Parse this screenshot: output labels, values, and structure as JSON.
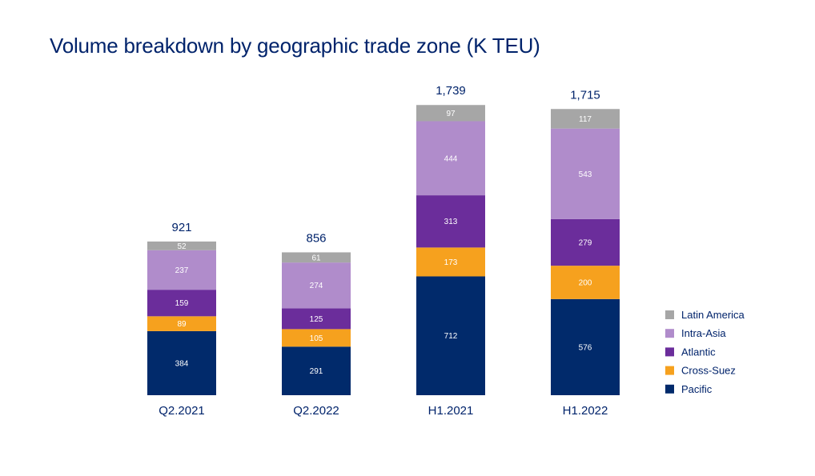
{
  "chart_data": {
    "type": "bar",
    "stacked": true,
    "title": "Volume breakdown by geographic trade zone (K TEU)",
    "categories": [
      "Q2.2021",
      "Q2.2022",
      "H1.2021",
      "H1.2022"
    ],
    "totals": [
      "921",
      "856",
      "1,739",
      "1,715"
    ],
    "series": [
      {
        "name": "Pacific",
        "color": "#012a6b",
        "values": [
          384,
          291,
          712,
          576
        ]
      },
      {
        "name": "Cross-Suez",
        "color": "#f6a11e",
        "values": [
          89,
          105,
          173,
          200
        ]
      },
      {
        "name": "Atlantic",
        "color": "#6b2d9b",
        "values": [
          159,
          125,
          313,
          279
        ]
      },
      {
        "name": "Intra-Asia",
        "color": "#b08ccb",
        "values": [
          237,
          274,
          444,
          543
        ]
      },
      {
        "name": "Latin America",
        "color": "#a6a6a6",
        "values": [
          52,
          61,
          97,
          117
        ]
      }
    ],
    "legend_order": [
      "Latin America",
      "Intra-Asia",
      "Atlantic",
      "Cross-Suez",
      "Pacific"
    ],
    "legend_position": "right",
    "grid": false
  }
}
